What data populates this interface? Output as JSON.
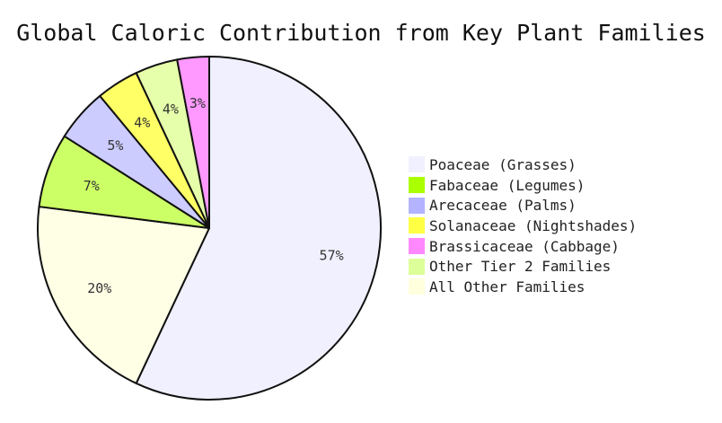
{
  "chart_data": {
    "type": "pie",
    "title": "Global Caloric Contribution from Key Plant Families",
    "slices": [
      {
        "label": "Poaceae (Grasses)",
        "value": 57,
        "display": "57%",
        "color": "#f0f0ff"
      },
      {
        "label": "All Other Families",
        "value": 20,
        "display": "20%",
        "color": "#ffffe6"
      },
      {
        "label": "Fabaceae (Legumes)",
        "value": 7,
        "display": "7%",
        "color": "#ccff66"
      },
      {
        "label": "Arecaceae (Palms)",
        "value": 5,
        "display": "5%",
        "color": "#ccccff"
      },
      {
        "label": "Solanaceae (Nightshades)",
        "value": 4,
        "display": "4%",
        "color": "#ffff66"
      },
      {
        "label": "Other Tier 2 Families",
        "value": 4,
        "display": "4%",
        "color": "#e6ffaa"
      },
      {
        "label": "Brassicaceae (Cabbage)",
        "value": 3,
        "display": "3%",
        "color": "#ff99ff"
      }
    ],
    "legend": [
      {
        "label": "Poaceae (Grasses)",
        "color": "#f0f0ff"
      },
      {
        "label": "Fabaceae (Legumes)",
        "color": "#aaff00"
      },
      {
        "label": "Arecaceae (Palms)",
        "color": "#b3b3ff"
      },
      {
        "label": "Solanaceae (Nightshades)",
        "color": "#ffff44"
      },
      {
        "label": "Brassicaceae (Cabbage)",
        "color": "#ff88ff"
      },
      {
        "label": "Other Tier 2 Families",
        "color": "#ddff99"
      },
      {
        "label": "All Other Families",
        "color": "#ffffdd"
      }
    ],
    "legend_position": "right"
  }
}
